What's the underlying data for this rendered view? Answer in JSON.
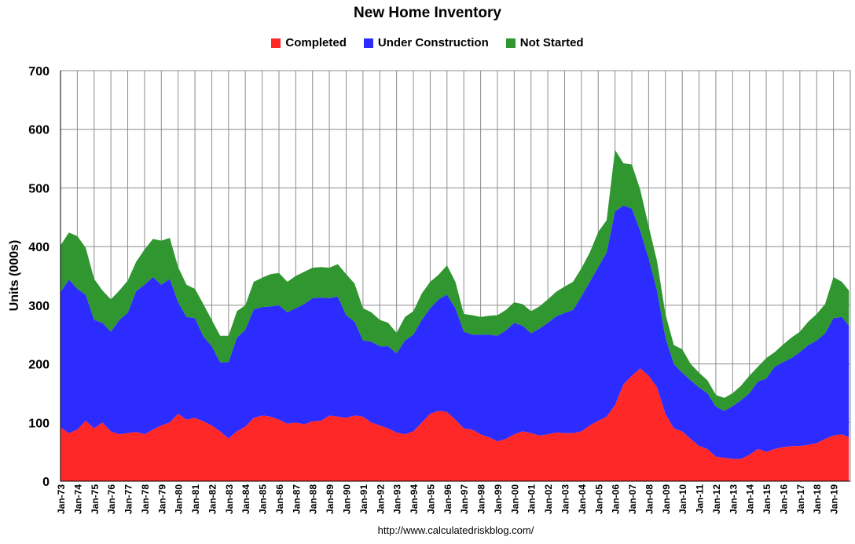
{
  "chart_data": {
    "type": "area",
    "stacked": true,
    "title": "New Home Inventory",
    "ylabel": "Units (000s)",
    "xlabel": "",
    "ylim": [
      0,
      700
    ],
    "yticks": [
      0,
      100,
      200,
      300,
      400,
      500,
      600,
      700
    ],
    "grid": true,
    "legend_position": "top",
    "source_text": "http://www.calculatedriskblog.com/",
    "x_start_year": 1973,
    "x_end_year": 2020,
    "categories": [
      "Jan-73",
      "Jan-74",
      "Jan-75",
      "Jan-76",
      "Jan-77",
      "Jan-78",
      "Jan-79",
      "Jan-80",
      "Jan-81",
      "Jan-82",
      "Jan-83",
      "Jan-84",
      "Jan-85",
      "Jan-86",
      "Jan-87",
      "Jan-88",
      "Jan-89",
      "Jan-90",
      "Jan-91",
      "Jan-92",
      "Jan-93",
      "Jan-94",
      "Jan-95",
      "Jan-96",
      "Jan-97",
      "Jan-98",
      "Jan-99",
      "Jan-00",
      "Jan-01",
      "Jan-02",
      "Jan-03",
      "Jan-04",
      "Jan-05",
      "Jan-06",
      "Jan-07",
      "Jan-08",
      "Jan-09",
      "Jan-10",
      "Jan-11",
      "Jan-12",
      "Jan-13",
      "Jan-14",
      "Jan-15",
      "Jan-16",
      "Jan-17",
      "Jan-18",
      "Jan-19"
    ],
    "series": [
      {
        "name": "Completed",
        "color": "#ff2828",
        "points": [
          [
            1973.0,
            92
          ],
          [
            1973.5,
            82
          ],
          [
            1974.0,
            88
          ],
          [
            1974.5,
            103
          ],
          [
            1975.0,
            90
          ],
          [
            1975.5,
            100
          ],
          [
            1976.0,
            85
          ],
          [
            1976.5,
            80
          ],
          [
            1977.0,
            82
          ],
          [
            1977.5,
            84
          ],
          [
            1978.0,
            80
          ],
          [
            1978.5,
            88
          ],
          [
            1979.0,
            95
          ],
          [
            1979.5,
            100
          ],
          [
            1980.0,
            115
          ],
          [
            1980.5,
            105
          ],
          [
            1981.0,
            108
          ],
          [
            1981.5,
            102
          ],
          [
            1982.0,
            95
          ],
          [
            1982.5,
            85
          ],
          [
            1983.0,
            73
          ],
          [
            1983.5,
            85
          ],
          [
            1984.0,
            93
          ],
          [
            1984.5,
            108
          ],
          [
            1985.0,
            112
          ],
          [
            1985.5,
            110
          ],
          [
            1986.0,
            105
          ],
          [
            1986.5,
            98
          ],
          [
            1987.0,
            100
          ],
          [
            1987.5,
            97
          ],
          [
            1988.0,
            102
          ],
          [
            1988.5,
            103
          ],
          [
            1989.0,
            112
          ],
          [
            1989.5,
            110
          ],
          [
            1990.0,
            108
          ],
          [
            1990.5,
            112
          ],
          [
            1991.0,
            110
          ],
          [
            1991.5,
            100
          ],
          [
            1992.0,
            95
          ],
          [
            1992.5,
            90
          ],
          [
            1993.0,
            83
          ],
          [
            1993.5,
            80
          ],
          [
            1994.0,
            85
          ],
          [
            1994.5,
            100
          ],
          [
            1995.0,
            115
          ],
          [
            1995.5,
            120
          ],
          [
            1996.0,
            118
          ],
          [
            1996.5,
            105
          ],
          [
            1997.0,
            90
          ],
          [
            1997.5,
            88
          ],
          [
            1998.0,
            80
          ],
          [
            1998.5,
            75
          ],
          [
            1999.0,
            68
          ],
          [
            1999.5,
            72
          ],
          [
            2000.0,
            80
          ],
          [
            2000.5,
            85
          ],
          [
            2001.0,
            82
          ],
          [
            2001.5,
            78
          ],
          [
            2002.0,
            80
          ],
          [
            2002.5,
            83
          ],
          [
            2003.0,
            82
          ],
          [
            2003.5,
            82
          ],
          [
            2004.0,
            85
          ],
          [
            2004.5,
            95
          ],
          [
            2005.0,
            103
          ],
          [
            2005.5,
            110
          ],
          [
            2006.0,
            130
          ],
          [
            2006.5,
            165
          ],
          [
            2007.0,
            180
          ],
          [
            2007.5,
            192
          ],
          [
            2008.0,
            180
          ],
          [
            2008.5,
            160
          ],
          [
            2009.0,
            115
          ],
          [
            2009.5,
            90
          ],
          [
            2010.0,
            85
          ],
          [
            2010.5,
            72
          ],
          [
            2011.0,
            60
          ],
          [
            2011.5,
            55
          ],
          [
            2012.0,
            42
          ],
          [
            2012.5,
            40
          ],
          [
            2013.0,
            38
          ],
          [
            2013.5,
            38
          ],
          [
            2014.0,
            45
          ],
          [
            2014.5,
            55
          ],
          [
            2015.0,
            50
          ],
          [
            2015.5,
            55
          ],
          [
            2016.0,
            58
          ],
          [
            2016.5,
            60
          ],
          [
            2017.0,
            60
          ],
          [
            2017.5,
            62
          ],
          [
            2018.0,
            65
          ],
          [
            2018.5,
            72
          ],
          [
            2019.0,
            78
          ],
          [
            2019.5,
            80
          ],
          [
            2019.92,
            75
          ]
        ]
      },
      {
        "name": "Under Construction",
        "color": "#2c2cff",
        "points": [
          [
            1973.0,
            230
          ],
          [
            1973.5,
            262
          ],
          [
            1974.0,
            240
          ],
          [
            1974.5,
            215
          ],
          [
            1975.0,
            185
          ],
          [
            1975.5,
            170
          ],
          [
            1976.0,
            170
          ],
          [
            1976.5,
            195
          ],
          [
            1977.0,
            205
          ],
          [
            1977.5,
            240
          ],
          [
            1978.0,
            255
          ],
          [
            1978.5,
            260
          ],
          [
            1979.0,
            240
          ],
          [
            1979.5,
            245
          ],
          [
            1980.0,
            190
          ],
          [
            1980.5,
            175
          ],
          [
            1981.0,
            170
          ],
          [
            1981.5,
            145
          ],
          [
            1982.0,
            135
          ],
          [
            1982.5,
            118
          ],
          [
            1983.0,
            130
          ],
          [
            1983.5,
            160
          ],
          [
            1984.0,
            165
          ],
          [
            1984.5,
            185
          ],
          [
            1985.0,
            185
          ],
          [
            1985.5,
            188
          ],
          [
            1986.0,
            195
          ],
          [
            1986.5,
            190
          ],
          [
            1987.0,
            195
          ],
          [
            1987.5,
            205
          ],
          [
            1988.0,
            210
          ],
          [
            1988.5,
            210
          ],
          [
            1989.0,
            200
          ],
          [
            1989.5,
            205
          ],
          [
            1990.0,
            175
          ],
          [
            1990.5,
            160
          ],
          [
            1991.0,
            130
          ],
          [
            1991.5,
            138
          ],
          [
            1992.0,
            135
          ],
          [
            1992.5,
            140
          ],
          [
            1993.0,
            135
          ],
          [
            1993.5,
            160
          ],
          [
            1994.0,
            165
          ],
          [
            1994.5,
            175
          ],
          [
            1995.0,
            180
          ],
          [
            1995.5,
            190
          ],
          [
            1996.0,
            200
          ],
          [
            1996.5,
            190
          ],
          [
            1997.0,
            165
          ],
          [
            1997.5,
            162
          ],
          [
            1998.0,
            170
          ],
          [
            1998.5,
            175
          ],
          [
            1999.0,
            180
          ],
          [
            1999.5,
            185
          ],
          [
            2000.0,
            190
          ],
          [
            2000.5,
            180
          ],
          [
            2001.0,
            170
          ],
          [
            2001.5,
            182
          ],
          [
            2002.0,
            190
          ],
          [
            2002.5,
            198
          ],
          [
            2003.0,
            205
          ],
          [
            2003.5,
            210
          ],
          [
            2004.0,
            230
          ],
          [
            2004.5,
            245
          ],
          [
            2005.0,
            262
          ],
          [
            2005.5,
            280
          ],
          [
            2006.0,
            330
          ],
          [
            2006.5,
            305
          ],
          [
            2007.0,
            285
          ],
          [
            2007.5,
            235
          ],
          [
            2008.0,
            200
          ],
          [
            2008.5,
            165
          ],
          [
            2009.0,
            130
          ],
          [
            2009.5,
            110
          ],
          [
            2010.0,
            100
          ],
          [
            2010.5,
            100
          ],
          [
            2011.0,
            100
          ],
          [
            2011.5,
            95
          ],
          [
            2012.0,
            85
          ],
          [
            2012.5,
            80
          ],
          [
            2013.0,
            90
          ],
          [
            2013.5,
            100
          ],
          [
            2014.0,
            105
          ],
          [
            2014.5,
            115
          ],
          [
            2015.0,
            125
          ],
          [
            2015.5,
            140
          ],
          [
            2016.0,
            145
          ],
          [
            2016.5,
            150
          ],
          [
            2017.0,
            160
          ],
          [
            2017.5,
            170
          ],
          [
            2018.0,
            175
          ],
          [
            2018.5,
            180
          ],
          [
            2019.0,
            200
          ],
          [
            2019.5,
            200
          ],
          [
            2019.92,
            190
          ]
        ]
      },
      {
        "name": "Not Started",
        "color": "#2f9630",
        "points": [
          [
            1973.0,
            80
          ],
          [
            1973.5,
            80
          ],
          [
            1974.0,
            90
          ],
          [
            1974.5,
            80
          ],
          [
            1975.0,
            70
          ],
          [
            1975.5,
            55
          ],
          [
            1976.0,
            55
          ],
          [
            1976.5,
            50
          ],
          [
            1977.0,
            55
          ],
          [
            1977.5,
            50
          ],
          [
            1978.0,
            60
          ],
          [
            1978.5,
            65
          ],
          [
            1979.0,
            75
          ],
          [
            1979.5,
            70
          ],
          [
            1980.0,
            60
          ],
          [
            1980.5,
            55
          ],
          [
            1981.0,
            50
          ],
          [
            1981.5,
            55
          ],
          [
            1982.0,
            45
          ],
          [
            1982.5,
            45
          ],
          [
            1983.0,
            45
          ],
          [
            1983.5,
            45
          ],
          [
            1984.0,
            42
          ],
          [
            1984.5,
            47
          ],
          [
            1985.0,
            50
          ],
          [
            1985.5,
            55
          ],
          [
            1986.0,
            55
          ],
          [
            1986.5,
            52
          ],
          [
            1987.0,
            55
          ],
          [
            1987.5,
            55
          ],
          [
            1988.0,
            52
          ],
          [
            1988.5,
            52
          ],
          [
            1989.0,
            52
          ],
          [
            1989.5,
            55
          ],
          [
            1990.0,
            70
          ],
          [
            1990.5,
            65
          ],
          [
            1991.0,
            55
          ],
          [
            1991.5,
            50
          ],
          [
            1992.0,
            45
          ],
          [
            1992.5,
            40
          ],
          [
            1993.0,
            35
          ],
          [
            1993.5,
            40
          ],
          [
            1994.0,
            40
          ],
          [
            1994.5,
            45
          ],
          [
            1995.0,
            45
          ],
          [
            1995.5,
            42
          ],
          [
            1996.0,
            50
          ],
          [
            1996.5,
            45
          ],
          [
            1997.0,
            30
          ],
          [
            1997.5,
            33
          ],
          [
            1998.0,
            30
          ],
          [
            1998.5,
            32
          ],
          [
            1999.0,
            35
          ],
          [
            1999.5,
            35
          ],
          [
            2000.0,
            35
          ],
          [
            2000.5,
            37
          ],
          [
            2001.0,
            38
          ],
          [
            2001.5,
            38
          ],
          [
            2002.0,
            40
          ],
          [
            2002.5,
            42
          ],
          [
            2003.0,
            45
          ],
          [
            2003.5,
            48
          ],
          [
            2004.0,
            48
          ],
          [
            2004.5,
            50
          ],
          [
            2005.0,
            60
          ],
          [
            2005.5,
            55
          ],
          [
            2006.0,
            105
          ],
          [
            2006.5,
            72
          ],
          [
            2007.0,
            75
          ],
          [
            2007.5,
            70
          ],
          [
            2008.0,
            55
          ],
          [
            2008.5,
            50
          ],
          [
            2009.0,
            40
          ],
          [
            2009.5,
            32
          ],
          [
            2010.0,
            40
          ],
          [
            2010.5,
            28
          ],
          [
            2011.0,
            25
          ],
          [
            2011.5,
            22
          ],
          [
            2012.0,
            20
          ],
          [
            2012.5,
            22
          ],
          [
            2013.0,
            22
          ],
          [
            2013.5,
            25
          ],
          [
            2014.0,
            30
          ],
          [
            2014.5,
            25
          ],
          [
            2015.0,
            35
          ],
          [
            2015.5,
            25
          ],
          [
            2016.0,
            30
          ],
          [
            2016.5,
            35
          ],
          [
            2017.0,
            35
          ],
          [
            2017.5,
            40
          ],
          [
            2018.0,
            45
          ],
          [
            2018.5,
            50
          ],
          [
            2019.0,
            70
          ],
          [
            2019.5,
            60
          ],
          [
            2019.92,
            60
          ]
        ]
      }
    ]
  }
}
